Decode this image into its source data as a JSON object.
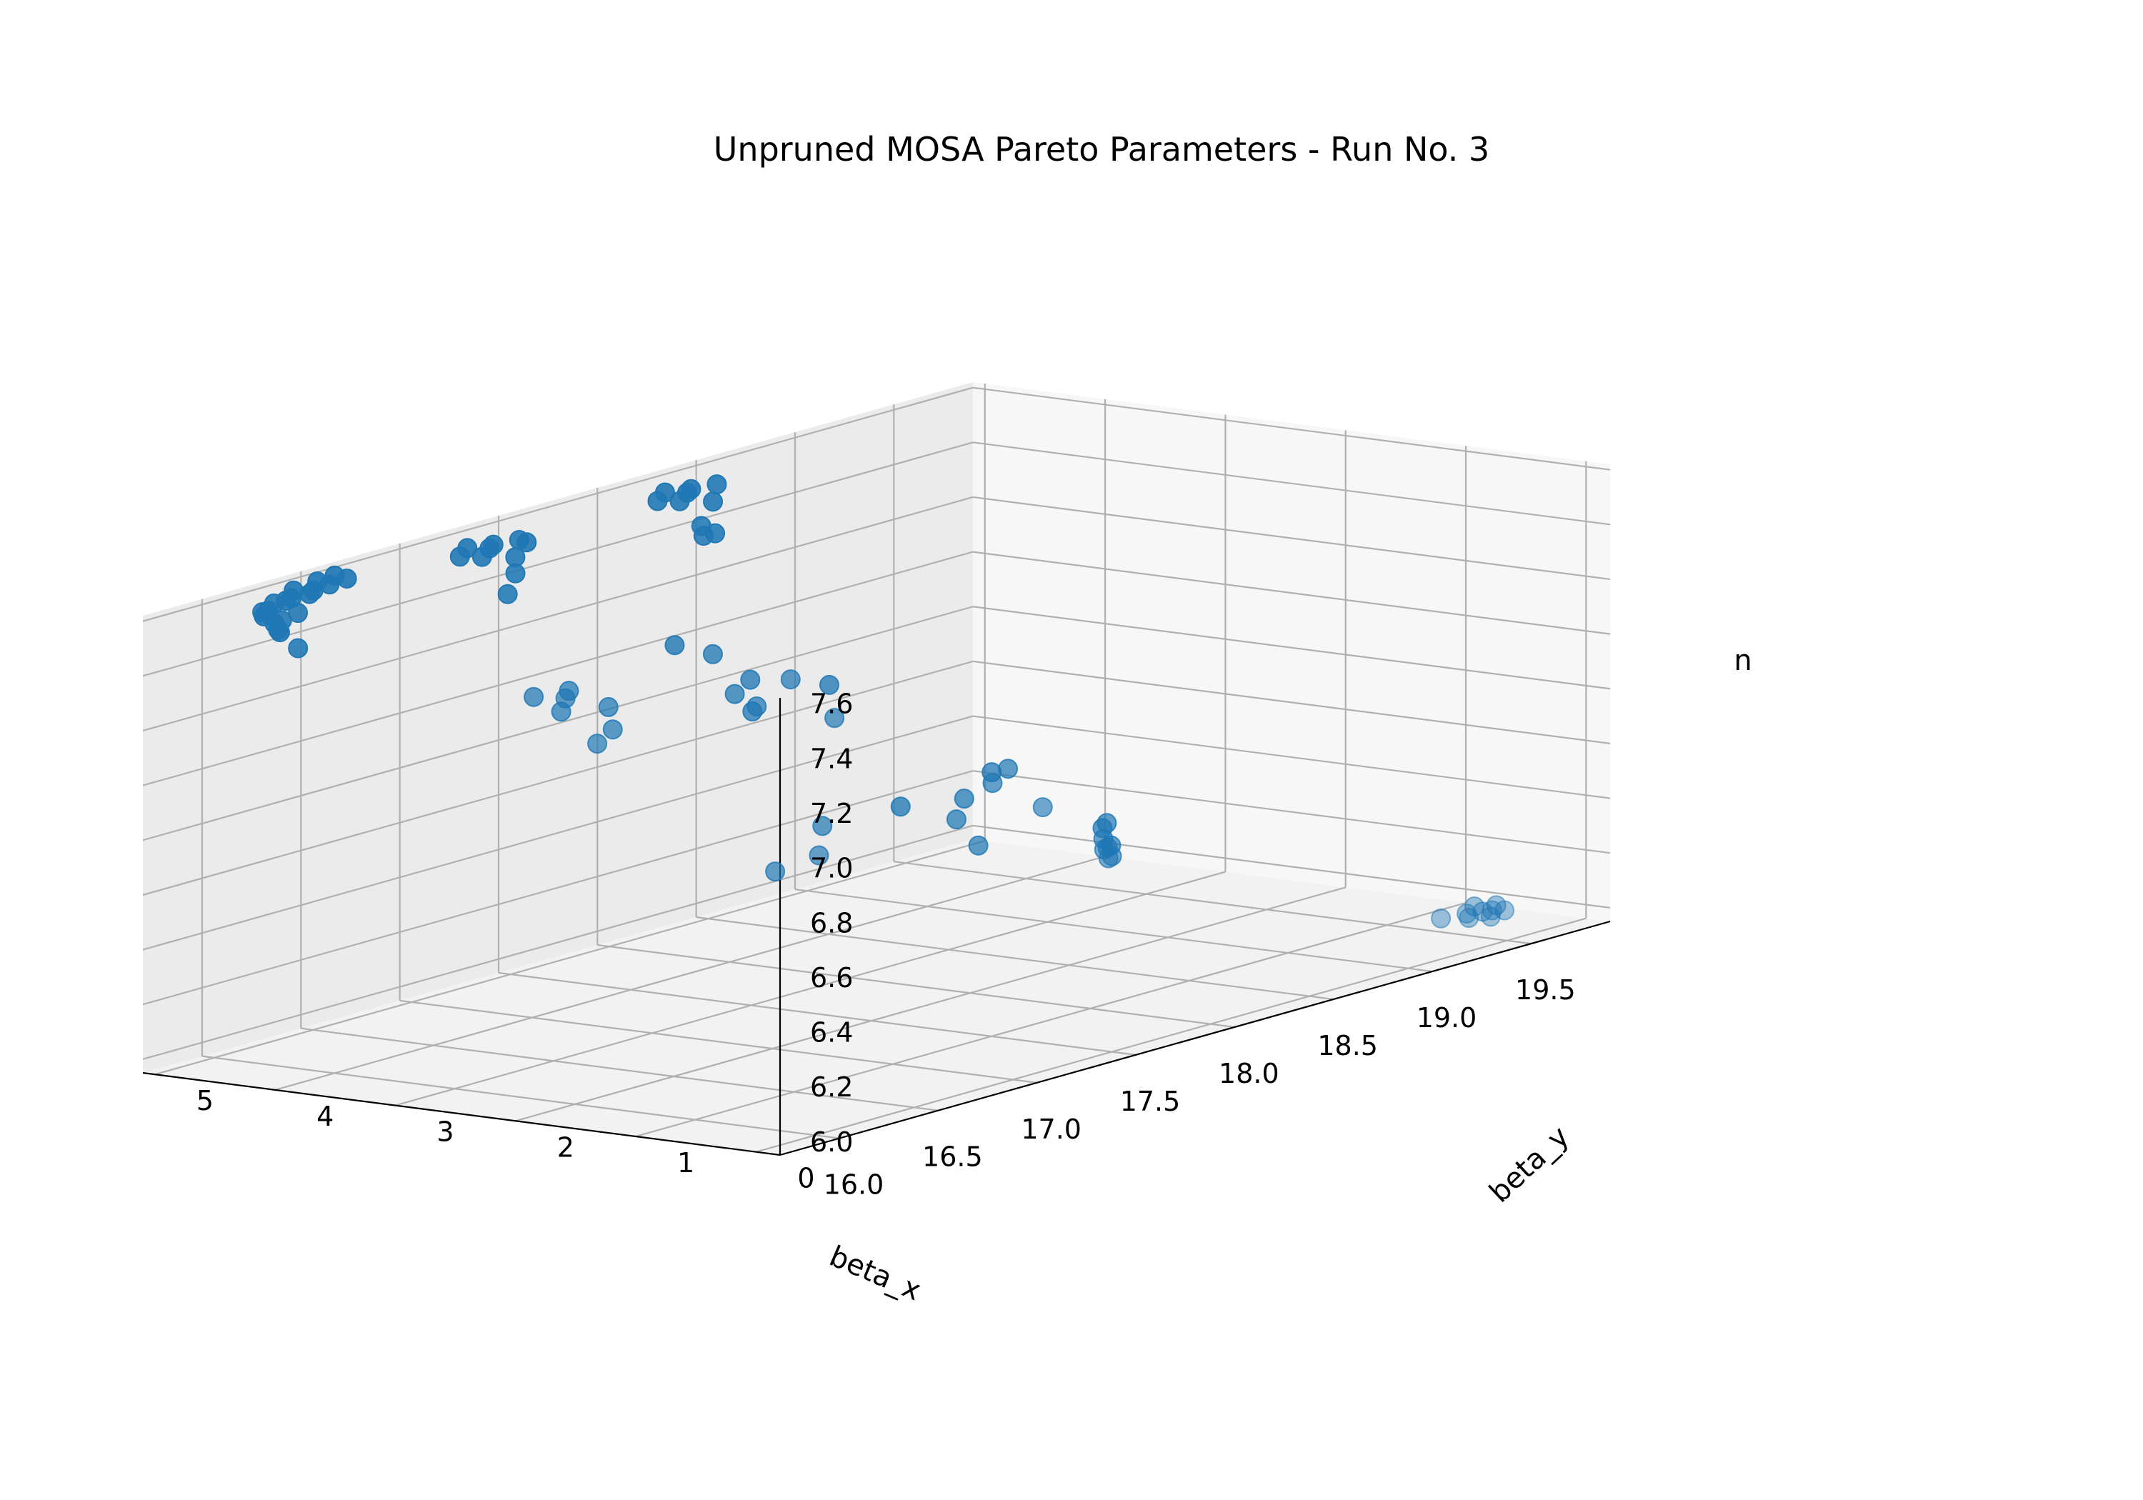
{
  "chart_data": {
    "type": "scatter",
    "projection": "3d",
    "title": "Unpruned MOSA Pareto Parameters - Run No. 3",
    "xlabel": "beta_x",
    "ylabel": "beta_y",
    "zlabel": "n",
    "xlim": [
      15.7,
      19.9
    ],
    "ylim": [
      -0.2,
      5.1
    ],
    "zlim": [
      5.95,
      7.62
    ],
    "xticks": [
      "16.0",
      "16.5",
      "17.0",
      "17.5",
      "18.0",
      "18.5",
      "19.0",
      "19.5"
    ],
    "yticks": [
      "0",
      "1",
      "2",
      "3",
      "4",
      "5"
    ],
    "zticks": [
      "6.0",
      "6.2",
      "6.4",
      "6.6",
      "6.8",
      "7.0",
      "7.2",
      "7.4",
      "7.6"
    ],
    "grid": true,
    "legend": "none",
    "marker_color": "#1f77b4",
    "series": [
      {
        "x": [
          16.0,
          16.02,
          16.05,
          16.08,
          16.12,
          16.15,
          16.03,
          16.06,
          16.1,
          16.18,
          16.22,
          16.25,
          16.3,
          16.35,
          16.4,
          16.45,
          16.5,
          16.55,
          16.12,
          17.0,
          17.05,
          17.1,
          17.15,
          17.2,
          17.25,
          17.3,
          17.35,
          17.12,
          17.22,
          18.0,
          18.05,
          18.1,
          18.15,
          18.2,
          18.25,
          18.3,
          18.1,
          18.2,
          18.05,
          17.6,
          16.4,
          16.5,
          16.6,
          16.7,
          16.8,
          16.9,
          16.6,
          17.55,
          17.6,
          17.7,
          17.8,
          17.65,
          17.75,
          17.8,
          18.2,
          17.5,
          17.6,
          17.8,
          18.6,
          18.7,
          18.8,
          18.9,
          18.5,
          18.6,
          18.65,
          18.55,
          18.7,
          18.8,
          18.9,
          19.0,
          19.1,
          19.2,
          19.3,
          19.4,
          19.5,
          19.6,
          19.7,
          19.55,
          19.65,
          19.75,
          19.6,
          19.7,
          19.68
        ],
        "y": [
          4.6,
          4.62,
          4.58,
          4.6,
          4.65,
          4.55,
          4.6,
          4.6,
          4.6,
          4.7,
          4.72,
          4.75,
          4.7,
          4.75,
          4.8,
          4.78,
          4.82,
          4.8,
          4.5,
          4.6,
          4.62,
          4.58,
          4.6,
          4.65,
          4.55,
          4.6,
          4.62,
          4.4,
          4.5,
          4.6,
          4.62,
          4.58,
          4.6,
          4.65,
          4.55,
          4.6,
          4.4,
          4.45,
          4.3,
          3.8,
          3.0,
          2.9,
          3.1,
          3.2,
          3.0,
          3.2,
          2.8,
          3.4,
          3.3,
          3.0,
          3.5,
          3.2,
          3.4,
          2.8,
          3.5,
          2.8,
          2.6,
          2.9,
          2.8,
          3.2,
          3.0,
          3.3,
          3.4,
          3.1,
          3.0,
          2.3,
          2.0,
          2.2,
          2.3,
          2.5,
          2.7,
          2.8,
          3.0,
          3.2,
          0.55,
          0.5,
          0.6,
          0.4,
          0.45,
          0.5,
          0.3,
          0.35,
          0.42
        ],
        "z": [
          7.6,
          7.58,
          7.55,
          7.52,
          7.5,
          7.57,
          7.6,
          7.62,
          7.55,
          7.6,
          7.6,
          7.62,
          7.6,
          7.6,
          7.62,
          7.6,
          7.62,
          7.6,
          7.45,
          7.6,
          7.62,
          7.58,
          7.6,
          7.6,
          7.55,
          7.6,
          7.58,
          7.45,
          7.5,
          7.6,
          7.62,
          7.58,
          7.6,
          7.6,
          7.55,
          7.6,
          7.5,
          7.45,
          7.48,
          7.2,
          7.3,
          7.28,
          7.2,
          7.25,
          7.1,
          7.15,
          7.1,
          7.2,
          7.05,
          7.1,
          7.05,
          7.0,
          6.95,
          6.95,
          6.95,
          6.45,
          6.5,
          6.55,
          6.55,
          6.45,
          6.55,
          6.5,
          6.45,
          6.4,
          6.3,
          6.5,
          6.3,
          6.3,
          6.25,
          6.25,
          6.25,
          6.2,
          6.25,
          6.2,
          6.0,
          6.0,
          6.0,
          6.0,
          6.0,
          6.0,
          6.0,
          6.0,
          6.0
        ]
      }
    ]
  }
}
